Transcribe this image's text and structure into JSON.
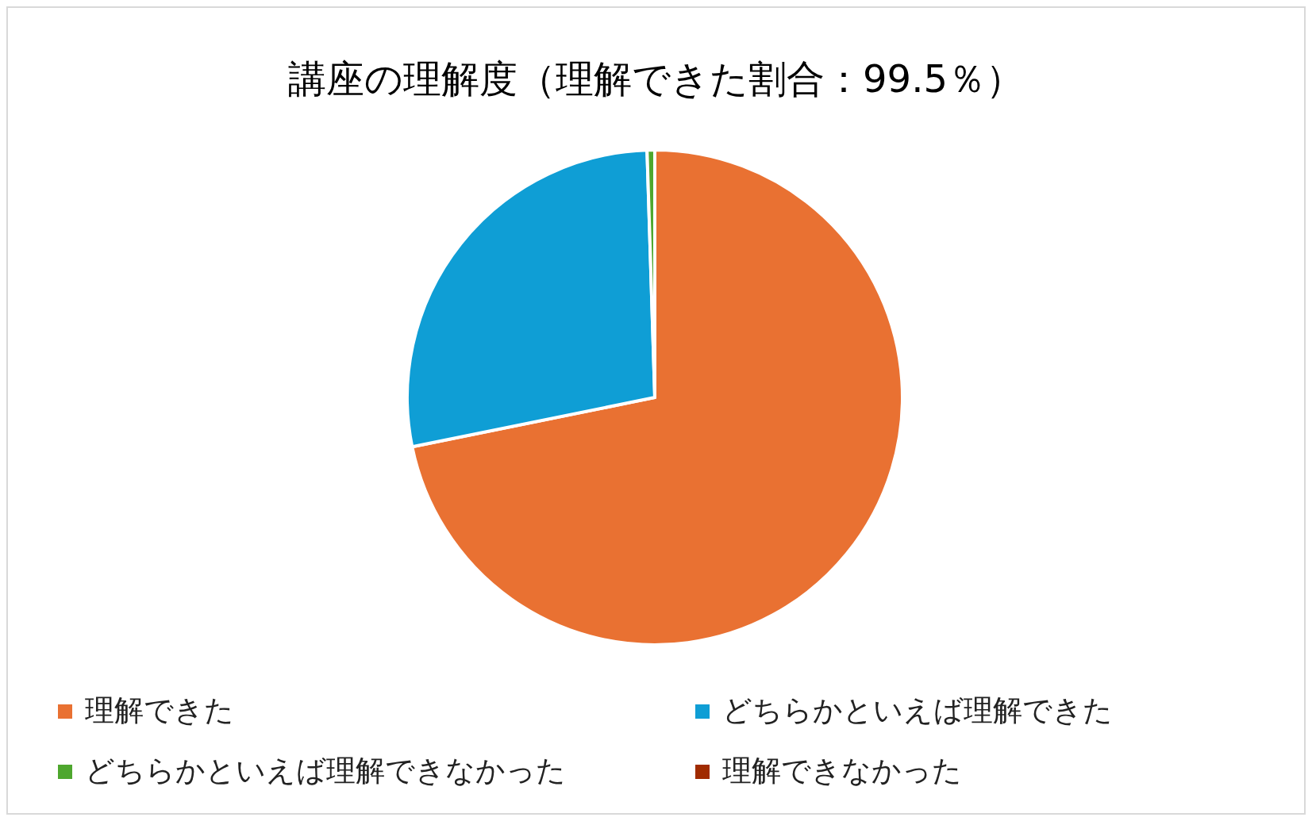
{
  "chart_data": {
    "type": "pie",
    "title": "講座の理解度（理解できた割合：99.5％）",
    "categories": [
      "理解できた",
      "どちらかといえば理解できた",
      "どちらかといえば理解できなかった",
      "理解できなかった"
    ],
    "values": [
      71.8,
      27.7,
      0.5,
      0
    ],
    "colors": [
      "#e97132",
      "#0f9ed5",
      "#4ea72e",
      "#a02b00"
    ],
    "legend": "bottom"
  }
}
